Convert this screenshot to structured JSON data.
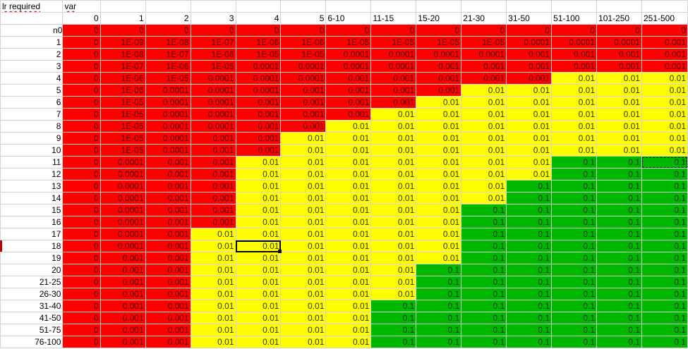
{
  "sheet": {
    "title_cell": "lr required",
    "var_label": "var",
    "n_label": "n",
    "selected_cell": "18 / 4",
    "colors": {
      "red": "#ff0000",
      "yellow": "#ffff00",
      "green": "#00b700"
    },
    "columns": [
      "0",
      "1",
      "2",
      "3",
      "4",
      "5",
      "6-10",
      "11-15",
      "15-20",
      "21-30",
      "31-50",
      "51-100",
      "101-250",
      "251-500"
    ],
    "rows": [
      {
        "label": "0",
        "cells": [
          "0",
          "0",
          "0",
          "0",
          "0",
          "0",
          "0",
          "0",
          "0",
          "0",
          "0",
          "0",
          "0",
          "0"
        ],
        "colors": [
          "r",
          "r",
          "r",
          "r",
          "r",
          "r",
          "r",
          "r",
          "r",
          "r",
          "r",
          "r",
          "r",
          "r"
        ]
      },
      {
        "label": "1",
        "cells": [
          "0",
          "1E-09",
          "1E-08",
          "1E-07",
          "1E-06",
          "1E-06",
          "1E-05",
          "1E-05",
          "1E-05",
          "1E-05",
          "0.0001",
          "0.0001",
          "0.0001",
          "0.001"
        ],
        "colors": [
          "r",
          "r",
          "r",
          "r",
          "r",
          "r",
          "r",
          "r",
          "r",
          "r",
          "r",
          "r",
          "r",
          "r"
        ]
      },
      {
        "label": "2",
        "cells": [
          "0",
          "1E-08",
          "1E-07",
          "1E-06",
          "1E-05",
          "1E-05",
          "0.0001",
          "0.0001",
          "0.0001",
          "0.0001",
          "0.001",
          "0.001",
          "0.001",
          "0.001"
        ],
        "colors": [
          "r",
          "r",
          "r",
          "r",
          "r",
          "r",
          "r",
          "r",
          "r",
          "r",
          "r",
          "r",
          "r",
          "r"
        ]
      },
      {
        "label": "3",
        "cells": [
          "0",
          "1E-07",
          "1E-06",
          "1E-05",
          "0.0001",
          "0.0001",
          "0.0001",
          "0.0001",
          "0.001",
          "0.001",
          "0.001",
          "0.001",
          "0.001",
          "0.001"
        ],
        "colors": [
          "r",
          "r",
          "r",
          "r",
          "r",
          "r",
          "r",
          "r",
          "r",
          "r",
          "r",
          "r",
          "r",
          "r"
        ]
      },
      {
        "label": "4",
        "cells": [
          "0",
          "1E-06",
          "1E-05",
          "0.0001",
          "0.0001",
          "0.0001",
          "0.001",
          "0.001",
          "0.001",
          "0.001",
          "0.001",
          "0.01",
          "0.01",
          "0.01"
        ],
        "colors": [
          "r",
          "r",
          "r",
          "r",
          "r",
          "r",
          "r",
          "r",
          "r",
          "r",
          "r",
          "y",
          "y",
          "y"
        ]
      },
      {
        "label": "5",
        "cells": [
          "0",
          "1E-06",
          "0.0001",
          "0.0001",
          "0.0001",
          "0.001",
          "0.001",
          "0.001",
          "0.001",
          "0.01",
          "0.01",
          "0.01",
          "0.01",
          "0.01"
        ],
        "colors": [
          "r",
          "r",
          "r",
          "r",
          "r",
          "r",
          "r",
          "r",
          "r",
          "y",
          "y",
          "y",
          "y",
          "y"
        ]
      },
      {
        "label": "6",
        "cells": [
          "0",
          "1E-05",
          "0.0001",
          "0.0001",
          "0.001",
          "0.001",
          "0.001",
          "0.001",
          "0.01",
          "0.01",
          "0.01",
          "0.01",
          "0.01",
          "0.01"
        ],
        "colors": [
          "r",
          "r",
          "r",
          "r",
          "r",
          "r",
          "r",
          "r",
          "y",
          "y",
          "y",
          "y",
          "y",
          "y"
        ]
      },
      {
        "label": "7",
        "cells": [
          "0",
          "1E-05",
          "0.0001",
          "0.0001",
          "0.001",
          "0.001",
          "0.001",
          "0.01",
          "0.01",
          "0.01",
          "0.01",
          "0.01",
          "0.01",
          "0.01"
        ],
        "colors": [
          "r",
          "r",
          "r",
          "r",
          "r",
          "r",
          "r",
          "y",
          "y",
          "y",
          "y",
          "y",
          "y",
          "y"
        ]
      },
      {
        "label": "8",
        "cells": [
          "0",
          "1E-05",
          "0.0001",
          "0.0001",
          "0.001",
          "0.001",
          "0.01",
          "0.01",
          "0.01",
          "0.01",
          "0.01",
          "0.01",
          "0.01",
          "0.01"
        ],
        "colors": [
          "r",
          "r",
          "r",
          "r",
          "r",
          "r",
          "y",
          "y",
          "y",
          "y",
          "y",
          "y",
          "y",
          "y"
        ]
      },
      {
        "label": "9",
        "cells": [
          "0",
          "1E-05",
          "0.0001",
          "0.001",
          "0.001",
          "0.01",
          "0.01",
          "0.01",
          "0.01",
          "0.01",
          "0.01",
          "0.01",
          "0.01",
          "0.01"
        ],
        "colors": [
          "r",
          "r",
          "r",
          "r",
          "r",
          "y",
          "y",
          "y",
          "y",
          "y",
          "y",
          "y",
          "y",
          "y"
        ]
      },
      {
        "label": "10",
        "cells": [
          "0",
          "1E-05",
          "0.0001",
          "0.001",
          "0.001",
          "0.01",
          "0.01",
          "0.01",
          "0.01",
          "0.01",
          "0.01",
          "0.01",
          "0.01",
          "0.01"
        ],
        "colors": [
          "r",
          "r",
          "r",
          "r",
          "r",
          "y",
          "y",
          "y",
          "y",
          "y",
          "y",
          "y",
          "y",
          "y"
        ]
      },
      {
        "label": "11",
        "cells": [
          "0",
          "0.0001",
          "0.001",
          "0.001",
          "0.01",
          "0.01",
          "0.01",
          "0.01",
          "0.01",
          "0.01",
          "0.01",
          "0.1",
          "0.1",
          "0.1"
        ],
        "colors": [
          "r",
          "r",
          "r",
          "r",
          "y",
          "y",
          "y",
          "y",
          "y",
          "y",
          "y",
          "g",
          "g",
          "g"
        ]
      },
      {
        "label": "12",
        "cells": [
          "0",
          "0.0001",
          "0.001",
          "0.001",
          "0.01",
          "0.01",
          "0.01",
          "0.01",
          "0.01",
          "0.01",
          "0.01",
          "0.1",
          "0.1",
          "0.1"
        ],
        "colors": [
          "r",
          "r",
          "r",
          "r",
          "y",
          "y",
          "y",
          "y",
          "y",
          "y",
          "y",
          "g",
          "g",
          "g"
        ]
      },
      {
        "label": "13",
        "cells": [
          "0",
          "0.0001",
          "0.001",
          "0.001",
          "0.01",
          "0.01",
          "0.01",
          "0.01",
          "0.01",
          "0.01",
          "0.1",
          "0.1",
          "0.1",
          "0.1"
        ],
        "colors": [
          "r",
          "r",
          "r",
          "r",
          "y",
          "y",
          "y",
          "y",
          "y",
          "y",
          "g",
          "g",
          "g",
          "g"
        ]
      },
      {
        "label": "14",
        "cells": [
          "0",
          "0.0001",
          "0.001",
          "0.001",
          "0.01",
          "0.01",
          "0.01",
          "0.01",
          "0.01",
          "0.01",
          "0.1",
          "0.1",
          "0.1",
          "0.1"
        ],
        "colors": [
          "r",
          "r",
          "r",
          "r",
          "y",
          "y",
          "y",
          "y",
          "y",
          "y",
          "g",
          "g",
          "g",
          "g"
        ]
      },
      {
        "label": "15",
        "cells": [
          "0",
          "0.0001",
          "0.001",
          "0.001",
          "0.01",
          "0.01",
          "0.01",
          "0.01",
          "0.01",
          "0.1",
          "0.1",
          "0.1",
          "0.1",
          "0.1"
        ],
        "colors": [
          "r",
          "r",
          "r",
          "r",
          "y",
          "y",
          "y",
          "y",
          "y",
          "g",
          "g",
          "g",
          "g",
          "g"
        ]
      },
      {
        "label": "16",
        "cells": [
          "0",
          "0.0001",
          "0.001",
          "0.001",
          "0.01",
          "0.01",
          "0.01",
          "0.01",
          "0.01",
          "0.1",
          "0.1",
          "0.1",
          "0.1",
          "0.1"
        ],
        "colors": [
          "r",
          "r",
          "r",
          "r",
          "y",
          "y",
          "y",
          "y",
          "y",
          "g",
          "g",
          "g",
          "g",
          "g"
        ]
      },
      {
        "label": "17",
        "cells": [
          "0",
          "0.0001",
          "0.001",
          "0.01",
          "0.01",
          "0.01",
          "0.01",
          "0.01",
          "0.01",
          "0.1",
          "0.1",
          "0.1",
          "0.1",
          "0.1"
        ],
        "colors": [
          "r",
          "r",
          "r",
          "y",
          "y",
          "y",
          "y",
          "y",
          "y",
          "g",
          "g",
          "g",
          "g",
          "g"
        ]
      },
      {
        "label": "18",
        "cells": [
          "0",
          "0.0001",
          "0.001",
          "0.01",
          "0.01",
          "0.01",
          "0.01",
          "0.01",
          "0.01",
          "0.1",
          "0.1",
          "0.1",
          "0.1",
          "0.1"
        ],
        "colors": [
          "r",
          "r",
          "r",
          "y",
          "y",
          "y",
          "y",
          "y",
          "y",
          "g",
          "g",
          "g",
          "g",
          "g"
        ]
      },
      {
        "label": "19",
        "cells": [
          "0",
          "0.001",
          "0.001",
          "0.01",
          "0.01",
          "0.01",
          "0.01",
          "0.01",
          "0.01",
          "0.1",
          "0.1",
          "0.1",
          "0.1",
          "0.1"
        ],
        "colors": [
          "r",
          "r",
          "r",
          "y",
          "y",
          "y",
          "y",
          "y",
          "y",
          "g",
          "g",
          "g",
          "g",
          "g"
        ]
      },
      {
        "label": "20",
        "cells": [
          "0",
          "0.001",
          "0.001",
          "0.01",
          "0.01",
          "0.01",
          "0.01",
          "0.01",
          "0.1",
          "0.1",
          "0.1",
          "0.1",
          "0.1",
          "0.1"
        ],
        "colors": [
          "r",
          "r",
          "r",
          "y",
          "y",
          "y",
          "y",
          "y",
          "g",
          "g",
          "g",
          "g",
          "g",
          "g"
        ]
      },
      {
        "label": "21-25",
        "cells": [
          "0",
          "0.001",
          "0.001",
          "0.01",
          "0.01",
          "0.01",
          "0.01",
          "0.01",
          "0.1",
          "0.1",
          "0.1",
          "0.1",
          "0.1",
          "0.1"
        ],
        "colors": [
          "r",
          "r",
          "r",
          "y",
          "y",
          "y",
          "y",
          "y",
          "g",
          "g",
          "g",
          "g",
          "g",
          "g"
        ]
      },
      {
        "label": "26-30",
        "cells": [
          "0",
          "0.001",
          "0.001",
          "0.01",
          "0.01",
          "0.01",
          "0.01",
          "0.01",
          "0.1",
          "0.1",
          "0.1",
          "0.1",
          "0.1",
          "0.1"
        ],
        "colors": [
          "r",
          "r",
          "r",
          "y",
          "y",
          "y",
          "y",
          "y",
          "g",
          "g",
          "g",
          "g",
          "g",
          "g"
        ]
      },
      {
        "label": "31-40",
        "cells": [
          "0",
          "0.001",
          "0.001",
          "0.01",
          "0.01",
          "0.01",
          "0.01",
          "0.1",
          "0.1",
          "0.1",
          "0.1",
          "0.1",
          "0.1",
          "0.1"
        ],
        "colors": [
          "r",
          "r",
          "r",
          "y",
          "y",
          "y",
          "y",
          "g",
          "g",
          "g",
          "g",
          "g",
          "g",
          "g"
        ]
      },
      {
        "label": "41-50",
        "cells": [
          "0",
          "0.001",
          "0.001",
          "0.01",
          "0.01",
          "0.01",
          "0.01",
          "0.1",
          "0.1",
          "0.1",
          "0.1",
          "0.1",
          "0.1",
          "0.1"
        ],
        "colors": [
          "r",
          "r",
          "r",
          "y",
          "y",
          "y",
          "y",
          "g",
          "g",
          "g",
          "g",
          "g",
          "g",
          "g"
        ]
      },
      {
        "label": "51-75",
        "cells": [
          "0",
          "0.001",
          "0.001",
          "0.01",
          "0.01",
          "0.01",
          "0.01",
          "0.1",
          "0.1",
          "0.1",
          "0.1",
          "0.1",
          "0.1",
          "0.1"
        ],
        "colors": [
          "r",
          "r",
          "r",
          "y",
          "y",
          "y",
          "y",
          "g",
          "g",
          "g",
          "g",
          "g",
          "g",
          "g"
        ]
      },
      {
        "label": "76-100",
        "cells": [
          "0",
          "0.001",
          "0.001",
          "0.01",
          "0.01",
          "0.01",
          "0.01",
          "0.1",
          "0.1",
          "0.1",
          "0.1",
          "0.1",
          "0.1",
          "0.1"
        ],
        "colors": [
          "r",
          "r",
          "r",
          "y",
          "y",
          "y",
          "y",
          "g",
          "g",
          "g",
          "g",
          "g",
          "g",
          "g"
        ]
      }
    ]
  }
}
